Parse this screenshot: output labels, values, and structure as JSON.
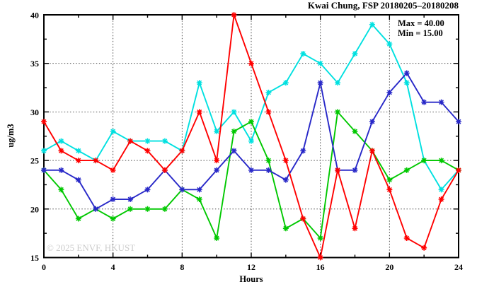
{
  "chart_data": {
    "type": "line",
    "title": "Kwai Chung, FSP 20180205–20180208",
    "xlabel": "Hours",
    "ylabel": "ug/m3",
    "legend": {
      "max_label": "Max = 40.00",
      "min_label": "Min = 15.00",
      "position": "top-right-inside"
    },
    "watermark": "© 2025 ENVF, HKUST",
    "xlim": [
      0,
      24
    ],
    "ylim": [
      15,
      40
    ],
    "xticks": [
      0,
      4,
      8,
      12,
      16,
      20,
      24
    ],
    "xticks_minor": [
      2,
      6,
      10,
      14,
      18,
      22
    ],
    "yticks": [
      15,
      20,
      25,
      30,
      35,
      40
    ],
    "yticks_minor": [
      17.5,
      22.5,
      27.5,
      32.5,
      37.5
    ],
    "grid_x": [
      4,
      8,
      12,
      16,
      20
    ],
    "grid_y": [
      20,
      25,
      30,
      35
    ],
    "grid_style": "dotted",
    "x": [
      0,
      1,
      2,
      3,
      4,
      5,
      6,
      7,
      8,
      9,
      10,
      11,
      12,
      13,
      14,
      15,
      16,
      17,
      18,
      19,
      20,
      21,
      22,
      23,
      24
    ],
    "series": [
      {
        "name": "line-cyan",
        "color": "#00e0e0",
        "values": [
          26,
          27,
          26,
          25,
          28,
          27,
          27,
          27,
          26,
          33,
          28,
          30,
          27,
          32,
          33,
          36,
          35,
          33,
          36,
          39,
          37,
          33,
          25,
          22,
          24
        ]
      },
      {
        "name": "line-green",
        "color": "#00c800",
        "values": [
          24,
          22,
          19,
          20,
          19,
          20,
          20,
          20,
          22,
          21,
          17,
          28,
          29,
          25,
          18,
          19,
          17,
          30,
          28,
          26,
          23,
          24,
          25,
          25,
          24
        ]
      },
      {
        "name": "line-blue",
        "color": "#2828c8",
        "values": [
          24,
          24,
          23,
          20,
          21,
          21,
          22,
          24,
          22,
          22,
          24,
          26,
          24,
          24,
          23,
          26,
          33,
          24,
          24,
          29,
          32,
          34,
          31,
          31,
          29
        ]
      },
      {
        "name": "line-red",
        "color": "#ff0000",
        "values": [
          29,
          26,
          25,
          25,
          24,
          27,
          26,
          24,
          26,
          30,
          25,
          40,
          35,
          30,
          25,
          19,
          15,
          24,
          18,
          26,
          22,
          17,
          16,
          21,
          24
        ]
      }
    ]
  }
}
